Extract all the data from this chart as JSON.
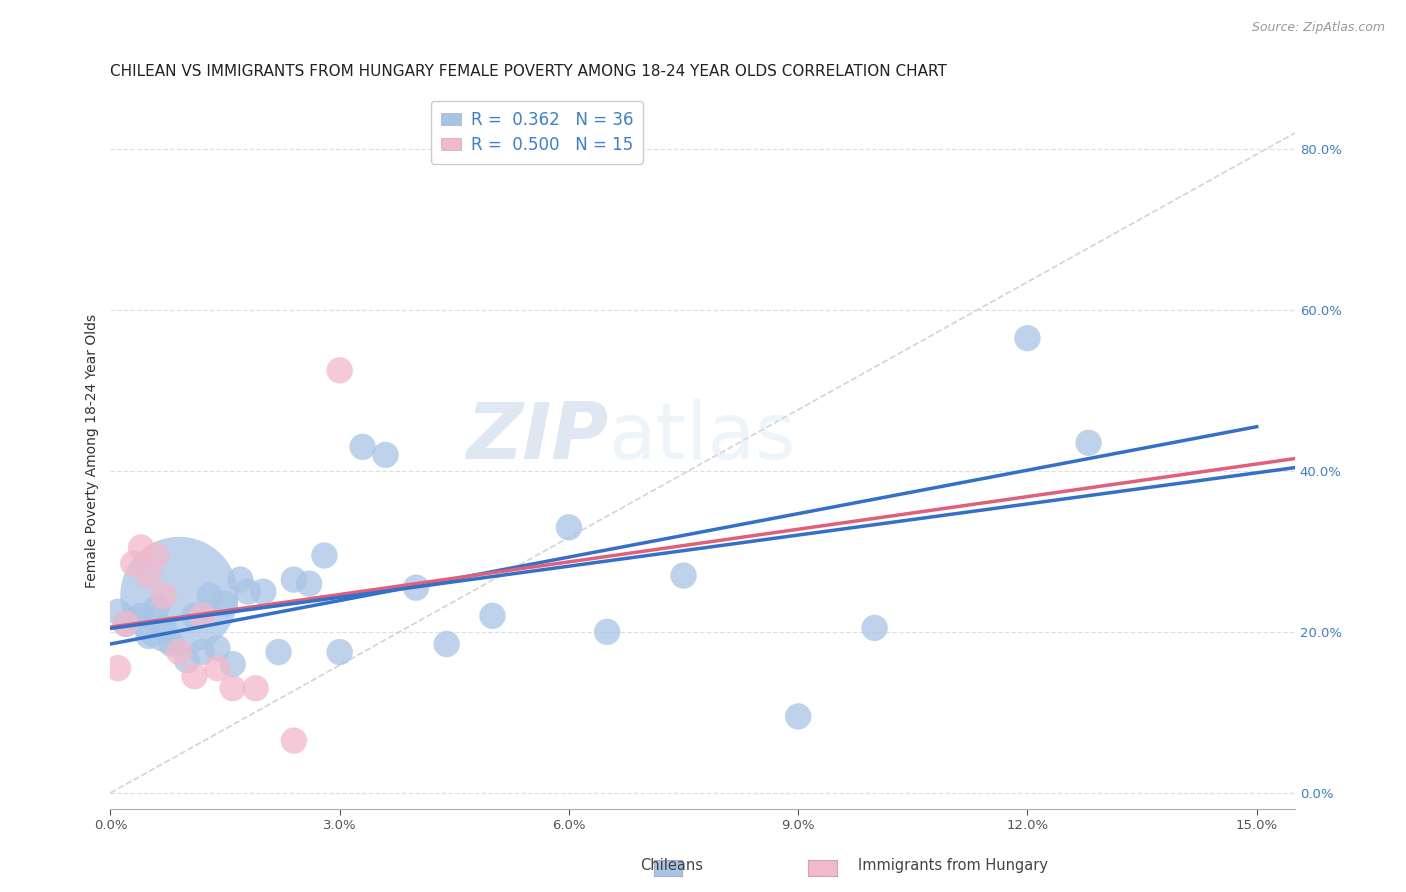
{
  "title": "CHILEAN VS IMMIGRANTS FROM HUNGARY FEMALE POVERTY AMONG 18-24 YEAR OLDS CORRELATION CHART",
  "source": "Source: ZipAtlas.com",
  "ylabel": "Female Poverty Among 18-24 Year Olds",
  "xlim": [
    0.0,
    0.155
  ],
  "ylim": [
    -0.02,
    0.87
  ],
  "xticks": [
    0.0,
    0.03,
    0.06,
    0.09,
    0.12,
    0.15
  ],
  "xtick_labels": [
    "0.0%",
    "3.0%",
    "6.0%",
    "9.0%",
    "12.0%",
    "15.0%"
  ],
  "yticks_right": [
    0.0,
    0.2,
    0.4,
    0.6,
    0.8
  ],
  "ytick_labels_right": [
    "0.0%",
    "20.0%",
    "40.0%",
    "60.0%",
    "80.0%"
  ],
  "legend_R_chilean": "0.362",
  "legend_N_chilean": "36",
  "legend_R_hungary": "0.500",
  "legend_N_hungary": "15",
  "chilean_color": "#a8c4e5",
  "hungary_color": "#f2b8cc",
  "chilean_line_color": "#3570c8",
  "hungary_line_color": "#e0607a",
  "ref_line_color": "#cccccc",
  "background_color": "#ffffff",
  "grid_color": "#dddddd",
  "chileans_x": [
    0.001,
    0.002,
    0.003,
    0.004,
    0.005,
    0.006,
    0.007,
    0.008,
    0.009,
    0.01,
    0.011,
    0.012,
    0.013,
    0.014,
    0.015,
    0.016,
    0.017,
    0.018,
    0.02,
    0.022,
    0.024,
    0.026,
    0.028,
    0.03,
    0.033,
    0.036,
    0.04,
    0.044,
    0.05,
    0.06,
    0.065,
    0.075,
    0.09,
    0.1,
    0.12,
    0.128
  ],
  "chileans_y": [
    0.225,
    0.21,
    0.215,
    0.22,
    0.195,
    0.23,
    0.205,
    0.185,
    0.245,
    0.165,
    0.22,
    0.175,
    0.245,
    0.18,
    0.235,
    0.16,
    0.265,
    0.25,
    0.25,
    0.175,
    0.265,
    0.26,
    0.295,
    0.175,
    0.43,
    0.42,
    0.255,
    0.185,
    0.22,
    0.33,
    0.2,
    0.27,
    0.095,
    0.205,
    0.565,
    0.435
  ],
  "chileans_size_raw": [
    20,
    20,
    20,
    20,
    20,
    20,
    20,
    20,
    400,
    20,
    20,
    20,
    20,
    20,
    20,
    20,
    20,
    20,
    20,
    20,
    20,
    20,
    20,
    20,
    20,
    20,
    20,
    20,
    20,
    20,
    20,
    20,
    20,
    20,
    20,
    20
  ],
  "hungary_x": [
    0.001,
    0.002,
    0.003,
    0.004,
    0.005,
    0.006,
    0.007,
    0.009,
    0.011,
    0.012,
    0.014,
    0.016,
    0.019,
    0.024,
    0.03
  ],
  "hungary_y": [
    0.155,
    0.21,
    0.285,
    0.305,
    0.27,
    0.295,
    0.245,
    0.175,
    0.145,
    0.22,
    0.155,
    0.13,
    0.13,
    0.065,
    0.525
  ],
  "hungary_size_raw": [
    20,
    20,
    20,
    20,
    20,
    20,
    20,
    20,
    20,
    20,
    20,
    20,
    20,
    20,
    20
  ],
  "watermark_zip": "ZIP",
  "watermark_atlas": "atlas",
  "title_fontsize": 11,
  "axis_label_fontsize": 10,
  "tick_fontsize": 9.5,
  "legend_fontsize": 12
}
